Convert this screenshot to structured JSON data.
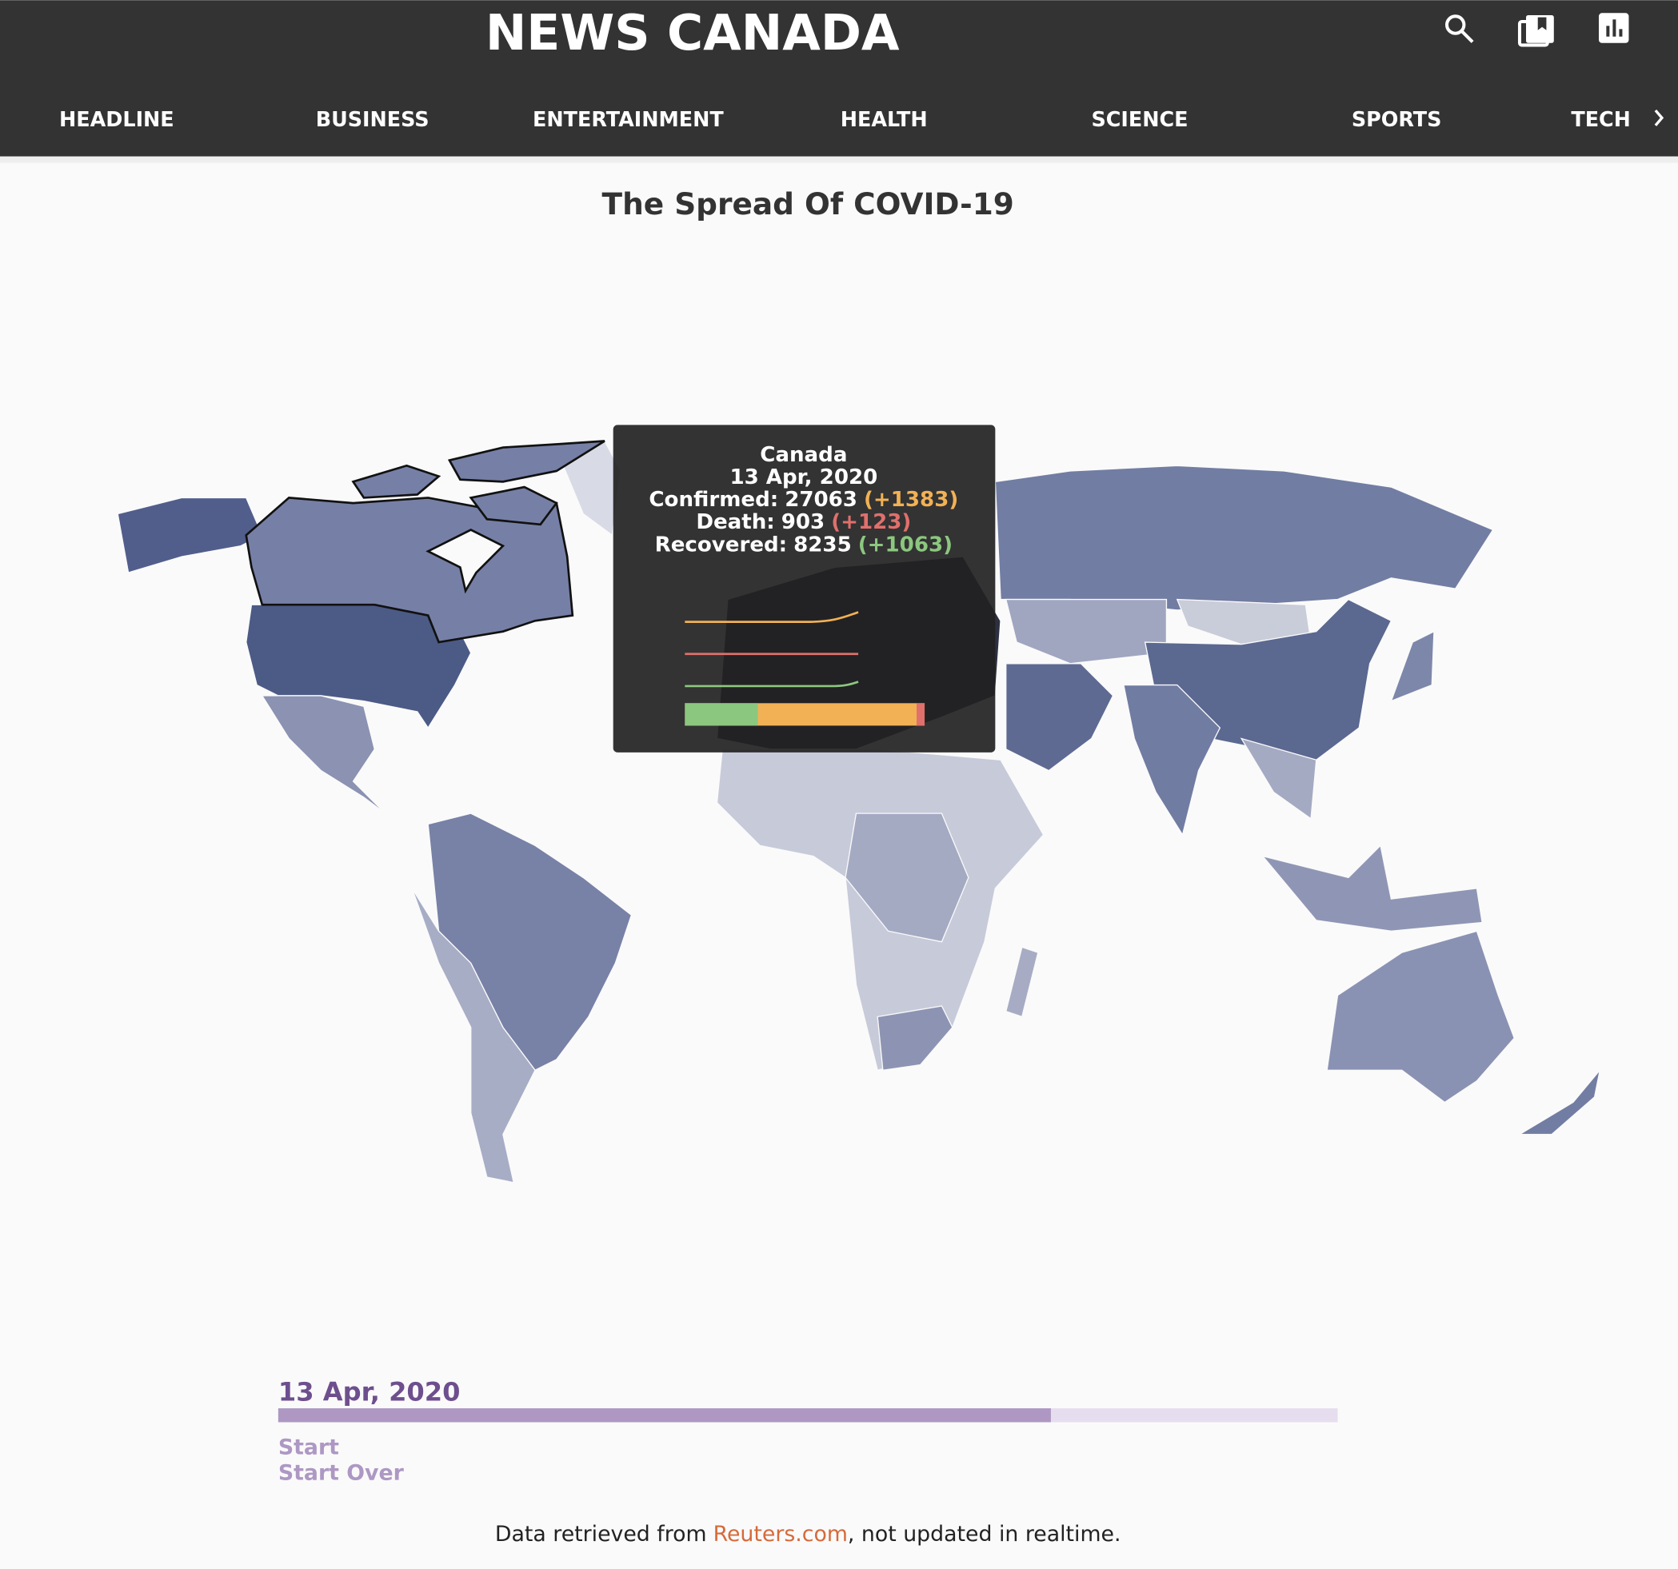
{
  "header": {
    "title": "NEWS CANADA",
    "nav": [
      "HEADLINE",
      "BUSINESS",
      "ENTERTAINMENT",
      "HEALTH",
      "SCIENCE",
      "SPORTS",
      "TECH"
    ]
  },
  "chart_title": "The Spread Of COVID-19",
  "tooltip": {
    "country": "Canada",
    "date": "13 Apr, 2020",
    "confirmed": {
      "label": "Confirmed:",
      "value": 27063,
      "change": "(+1383)"
    },
    "death": {
      "label": "Death:",
      "value": 903,
      "change": "(+123)"
    },
    "recovered": {
      "label": "Recovered:",
      "value": 8235,
      "change": "(+1063)"
    }
  },
  "timeline": {
    "date": "13 Apr, 2020",
    "buttons": [
      "Start",
      "Start Over"
    ]
  },
  "footer": {
    "prefix": "Data retrieved from",
    "link": "Reuters.com",
    "suffix": ", not updated in realtime."
  }
}
